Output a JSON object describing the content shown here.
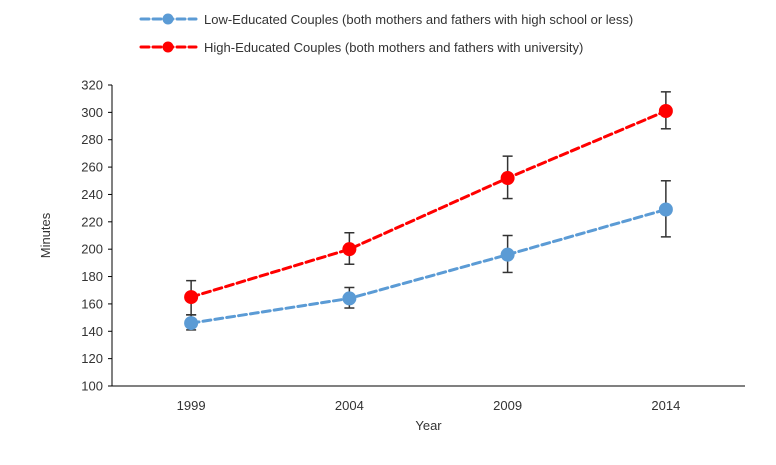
{
  "chart_data": {
    "type": "line",
    "title": "",
    "xlabel": "Year",
    "ylabel": "Minutes",
    "categories": [
      "1999",
      "2004",
      "2009",
      "2014"
    ],
    "ylim": [
      100,
      320
    ],
    "yticks": [
      100,
      120,
      140,
      160,
      180,
      200,
      220,
      240,
      260,
      280,
      300,
      320
    ],
    "grid": false,
    "legend_position": "top",
    "series": [
      {
        "name": "Low-Educated Couples (both mothers and fathers with high school or less)",
        "color": "#5B9BD5",
        "line_style": "dashed",
        "marker": "circle",
        "values": [
          146,
          164,
          196,
          229
        ],
        "error_low": [
          141,
          157,
          183,
          209
        ],
        "error_high": [
          152,
          172,
          210,
          250
        ]
      },
      {
        "name": "High-Educated Couples (both mothers and fathers with university)",
        "color": "#FF0000",
        "line_style": "dashed",
        "marker": "circle",
        "values": [
          165,
          200,
          252,
          301
        ],
        "error_low": [
          152,
          189,
          237,
          288
        ],
        "error_high": [
          177,
          212,
          268,
          315
        ]
      }
    ]
  }
}
